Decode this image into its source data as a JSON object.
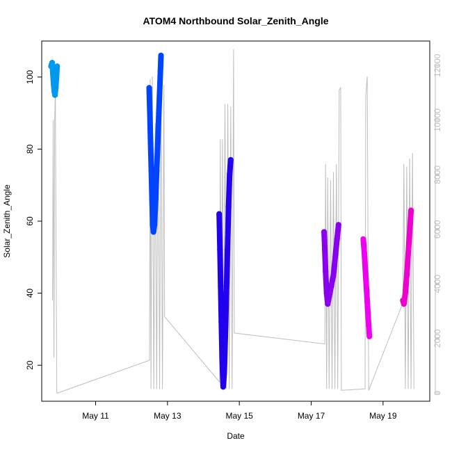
{
  "chart_data": {
    "type": "scatter",
    "title": "ATOM4 Northbound Solar_Zenith_Angle",
    "xlabel": "Date",
    "ylabel": "Solar_Zenith_Angle",
    "x_ticks": [
      "May 11",
      "May 13",
      "May 15",
      "May 17",
      "May 19"
    ],
    "x_tick_values": [
      11,
      13,
      15,
      17,
      19
    ],
    "xlim": [
      9.5,
      20.3
    ],
    "ylim": [
      10,
      110
    ],
    "y_ticks": [
      20,
      40,
      60,
      80,
      100
    ],
    "y2_ticks": [
      0,
      2000,
      4000,
      6000,
      8000,
      10000,
      12000
    ],
    "y2lim": [
      -300,
      12900
    ],
    "grid": false,
    "secondary_series": {
      "color": "#bdbdbd",
      "points": [
        [
          9.8,
          3400
        ],
        [
          9.82,
          10000
        ],
        [
          9.84,
          1300
        ],
        [
          9.86,
          10000
        ],
        [
          9.88,
          11100
        ],
        [
          9.9,
          5000
        ],
        [
          9.92,
          0
        ],
        [
          9.94,
          0
        ],
        [
          12.5,
          1200
        ],
        [
          12.52,
          11500
        ],
        [
          12.54,
          150
        ],
        [
          12.58,
          11600
        ],
        [
          12.62,
          150
        ],
        [
          12.66,
          9900
        ],
        [
          12.7,
          150
        ],
        [
          12.74,
          11300
        ],
        [
          12.78,
          150
        ],
        [
          12.82,
          11400
        ],
        [
          12.86,
          150
        ],
        [
          12.9,
          11300
        ],
        [
          12.92,
          2800
        ],
        [
          14.45,
          400
        ],
        [
          14.47,
          9300
        ],
        [
          14.5,
          150
        ],
        [
          14.53,
          9300
        ],
        [
          14.56,
          150
        ],
        [
          14.6,
          10600
        ],
        [
          14.64,
          150
        ],
        [
          14.68,
          10600
        ],
        [
          14.72,
          150
        ],
        [
          14.76,
          10500
        ],
        [
          14.8,
          150
        ],
        [
          14.84,
          12600
        ],
        [
          14.86,
          2200
        ],
        [
          17.38,
          1800
        ],
        [
          17.4,
          8400
        ],
        [
          17.43,
          150
        ],
        [
          17.46,
          7900
        ],
        [
          17.5,
          150
        ],
        [
          17.54,
          7800
        ],
        [
          17.58,
          150
        ],
        [
          17.62,
          8100
        ],
        [
          17.66,
          150
        ],
        [
          17.7,
          8400
        ],
        [
          17.74,
          150
        ],
        [
          17.78,
          11100
        ],
        [
          17.82,
          11200
        ],
        [
          17.84,
          100
        ],
        [
          18.5,
          150
        ],
        [
          18.52,
          10900
        ],
        [
          18.56,
          11600
        ],
        [
          18.6,
          100
        ],
        [
          19.55,
          3300
        ],
        [
          19.58,
          8400
        ],
        [
          19.62,
          150
        ],
        [
          19.66,
          8300
        ],
        [
          19.7,
          150
        ],
        [
          19.74,
          8600
        ],
        [
          19.78,
          150
        ],
        [
          19.82,
          8800
        ],
        [
          19.86,
          150
        ]
      ]
    },
    "series": [
      {
        "color": "#0099ee",
        "points": [
          [
            9.76,
            103
          ],
          [
            9.79,
            104
          ],
          [
            9.81,
            101
          ],
          [
            9.83,
            98
          ],
          [
            9.85,
            96
          ],
          [
            9.87,
            95
          ],
          [
            9.89,
            97
          ],
          [
            9.91,
            100
          ],
          [
            9.93,
            103
          ]
        ]
      },
      {
        "color": "#0044ff",
        "points": [
          [
            12.49,
            97
          ],
          [
            12.51,
            90
          ],
          [
            12.53,
            82
          ],
          [
            12.55,
            74
          ],
          [
            12.57,
            66
          ],
          [
            12.59,
            59
          ],
          [
            12.61,
            57
          ],
          [
            12.64,
            59
          ],
          [
            12.67,
            66
          ],
          [
            12.7,
            74
          ],
          [
            12.73,
            82
          ],
          [
            12.76,
            90
          ],
          [
            12.79,
            98
          ],
          [
            12.82,
            106
          ]
        ]
      },
      {
        "color": "#2200ee",
        "points": [
          [
            14.44,
            62
          ],
          [
            14.46,
            52
          ],
          [
            14.48,
            42
          ],
          [
            14.5,
            32
          ],
          [
            14.52,
            22
          ],
          [
            14.55,
            14
          ],
          [
            14.58,
            18
          ],
          [
            14.61,
            28
          ],
          [
            14.64,
            40
          ],
          [
            14.67,
            52
          ],
          [
            14.7,
            64
          ],
          [
            14.73,
            73
          ],
          [
            14.76,
            77
          ]
        ]
      },
      {
        "color": "#8800ee",
        "points": [
          [
            17.36,
            57
          ],
          [
            17.38,
            52
          ],
          [
            17.4,
            46
          ],
          [
            17.43,
            40
          ],
          [
            17.46,
            37
          ],
          [
            17.5,
            39
          ],
          [
            17.56,
            42
          ],
          [
            17.62,
            45
          ],
          [
            17.68,
            51
          ],
          [
            17.72,
            55
          ],
          [
            17.76,
            59
          ]
        ]
      },
      {
        "color": "#ee00ee",
        "points": [
          [
            18.45,
            55
          ],
          [
            18.48,
            51
          ],
          [
            18.51,
            46
          ],
          [
            18.54,
            41
          ],
          [
            18.57,
            36
          ],
          [
            18.6,
            31
          ],
          [
            18.62,
            28
          ]
        ]
      },
      {
        "color": "#ee00cc",
        "points": [
          [
            19.55,
            38
          ],
          [
            19.58,
            37
          ],
          [
            19.62,
            40
          ],
          [
            19.66,
            45
          ],
          [
            19.7,
            51
          ],
          [
            19.74,
            57
          ],
          [
            19.78,
            63
          ]
        ]
      }
    ]
  }
}
